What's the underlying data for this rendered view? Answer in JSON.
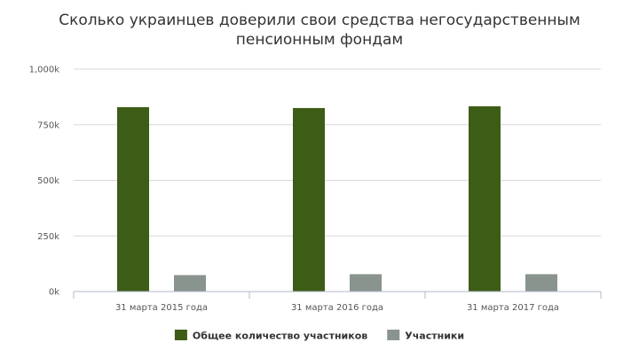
{
  "chart_data": {
    "type": "bar",
    "title_lines": [
      "Сколько украинцев доверили свои средства негосударственным",
      "пенсионным фондам"
    ],
    "categories": [
      "31 марта 2015 года",
      "31 марта 2016 года",
      "31 марта 2017 года"
    ],
    "series": [
      {
        "name": "Общее количество участников",
        "color": "#3d5c16",
        "values": [
          829000,
          825000,
          833000
        ]
      },
      {
        "name": "Участники",
        "color": "#8a948e",
        "values": [
          74000,
          78000,
          78000
        ]
      }
    ],
    "y_ticks": [
      {
        "value": 0,
        "label": "0k"
      },
      {
        "value": 250000,
        "label": "250k"
      },
      {
        "value": 500000,
        "label": "500k"
      },
      {
        "value": 750000,
        "label": "750k"
      },
      {
        "value": 1000000,
        "label": "1,000k"
      }
    ],
    "ylim": [
      0,
      1000000
    ],
    "grid": true,
    "legend_position": "bottom-center"
  }
}
